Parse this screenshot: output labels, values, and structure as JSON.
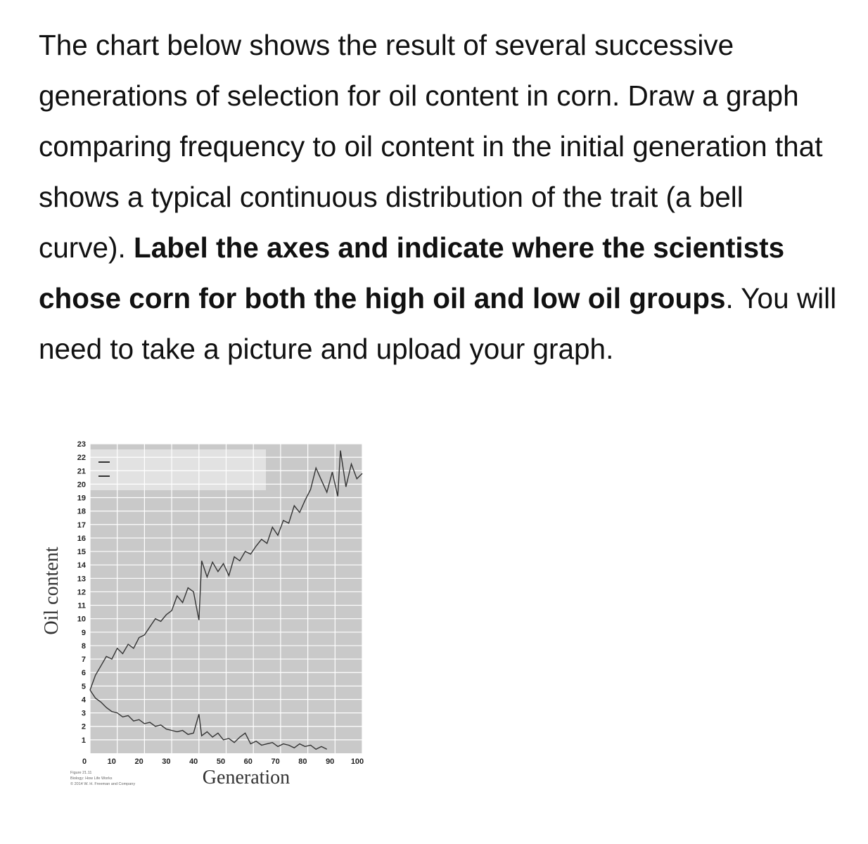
{
  "paragraph": [
    {
      "text": "The chart below shows the result of several successive generations of selection for oil content in corn. Draw a graph comparing frequency to oil content in the initial generation that shows a typical continuous distribution of the trait (a bell curve). ",
      "bold": false
    },
    {
      "text": "Label the axes and indicate where the scientists chose corn for both the high oil and low oil groups",
      "bold": true
    },
    {
      "text": ". You will need to take a picture and upload your graph.",
      "bold": false
    }
  ],
  "chart_data": {
    "type": "line",
    "x_label": "Generation",
    "y_label": "Oil content",
    "credits": [
      "Figure 21.11",
      "Biology: How Life Works",
      "© 2014 W. H. Freeman and Company"
    ],
    "xlim": [
      0,
      100
    ],
    "ylim": [
      0,
      23
    ],
    "xticks": [
      0,
      10,
      20,
      30,
      40,
      50,
      60,
      70,
      80,
      90,
      100
    ],
    "yticks": [
      1,
      2,
      3,
      4,
      5,
      6,
      7,
      8,
      9,
      10,
      11,
      12,
      13,
      14,
      15,
      16,
      17,
      18,
      19,
      20,
      21,
      22,
      23
    ],
    "grid": true,
    "background": "#c9c9c9",
    "series": [
      {
        "color": "#333333",
        "x": [
          0,
          2,
          4,
          6,
          8,
          10,
          12,
          14,
          16,
          18,
          20,
          22,
          24,
          26,
          28,
          30,
          32,
          34,
          36,
          38,
          40,
          41,
          43,
          45,
          47,
          49,
          51,
          53,
          55,
          57,
          59,
          61,
          63,
          65,
          67,
          69,
          71,
          73,
          75,
          77,
          79,
          81,
          83,
          85,
          87,
          89,
          91,
          92,
          94,
          96,
          98,
          100
        ],
        "values": [
          4.7,
          5.8,
          6.5,
          7.2,
          7.0,
          7.8,
          7.4,
          8.1,
          7.8,
          8.6,
          8.8,
          9.4,
          10.0,
          9.8,
          10.3,
          10.6,
          11.7,
          11.2,
          12.3,
          12.0,
          9.9,
          14.3,
          13.1,
          14.2,
          13.5,
          14.1,
          13.2,
          14.6,
          14.3,
          15.0,
          14.8,
          15.4,
          15.9,
          15.6,
          16.8,
          16.2,
          17.3,
          17.1,
          18.4,
          17.9,
          18.8,
          19.6,
          21.2,
          20.3,
          19.4,
          20.9,
          19.1,
          22.5,
          19.8,
          21.5,
          20.4,
          20.8
        ]
      },
      {
        "color": "#333333",
        "x": [
          0,
          2,
          4,
          6,
          8,
          10,
          12,
          14,
          16,
          18,
          20,
          22,
          24,
          26,
          28,
          30,
          32,
          34,
          36,
          38,
          40,
          41,
          43,
          45,
          47,
          49,
          51,
          53,
          55,
          57,
          59,
          61,
          63,
          65,
          67,
          69,
          71,
          73,
          75,
          77,
          79,
          81,
          83,
          85,
          87
        ],
        "values": [
          4.7,
          4.1,
          3.8,
          3.4,
          3.1,
          3.0,
          2.7,
          2.8,
          2.4,
          2.5,
          2.2,
          2.3,
          2.0,
          2.1,
          1.8,
          1.7,
          1.6,
          1.7,
          1.4,
          1.5,
          2.9,
          1.3,
          1.6,
          1.2,
          1.5,
          1.0,
          1.1,
          0.8,
          1.2,
          1.5,
          0.7,
          0.9,
          0.6,
          0.7,
          0.8,
          0.5,
          0.7,
          0.6,
          0.4,
          0.7,
          0.5,
          0.6,
          0.3,
          0.5,
          0.3
        ]
      }
    ]
  }
}
